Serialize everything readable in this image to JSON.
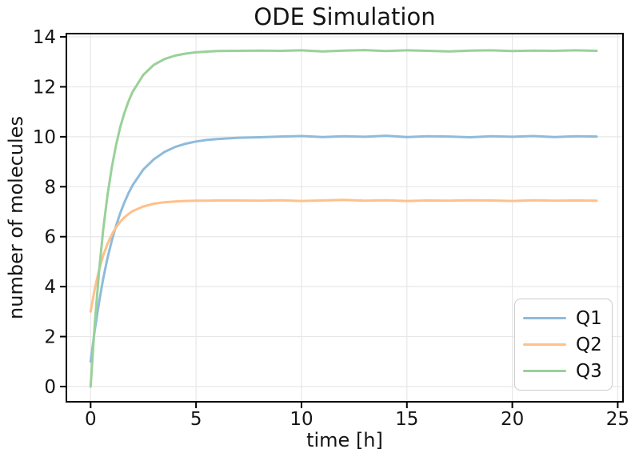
{
  "chart_data": {
    "type": "line",
    "title": "ODE Simulation",
    "xlabel": "time [h]",
    "ylabel": "number of molecules",
    "xlim": [
      -1.15,
      25.25
    ],
    "ylim": [
      -0.61,
      14.13
    ],
    "xticks": [
      0,
      5,
      10,
      15,
      20,
      25
    ],
    "yticks": [
      0,
      2,
      4,
      6,
      8,
      10,
      12,
      14
    ],
    "grid": true,
    "legend": {
      "position": "lower right"
    },
    "colors": {
      "grid": "#e7e7e7",
      "spine": "#000000",
      "tick_text": "#151515"
    },
    "x": [
      0,
      0.2,
      0.4,
      0.6,
      0.8,
      1,
      1.2,
      1.4,
      1.6,
      1.8,
      2,
      2.5,
      3,
      3.5,
      4,
      4.5,
      5,
      5.5,
      6,
      7,
      8,
      9,
      10,
      11,
      12,
      13,
      14,
      15,
      16,
      17,
      18,
      19,
      20,
      21,
      22,
      23,
      24
    ],
    "series": [
      {
        "name": "Q1",
        "color": "#8fbbdb",
        "values": [
          1,
          2.28,
          3.38,
          4.33,
          5.14,
          5.83,
          6.42,
          6.93,
          7.37,
          7.75,
          8.07,
          8.69,
          9.1,
          9.39,
          9.59,
          9.72,
          9.81,
          9.87,
          9.91,
          9.96,
          9.98,
          10.01,
          10.03,
          9.99,
          10.02,
          10,
          10.04,
          9.99,
          10.02,
          10.01,
          9.98,
          10.02,
          10,
          10.03,
          9.99,
          10.02,
          10.01
        ]
      },
      {
        "name": "Q2",
        "color": "#ffc08a",
        "values": [
          3,
          3.93,
          4.67,
          5.25,
          5.71,
          6.08,
          6.37,
          6.59,
          6.77,
          6.91,
          7.03,
          7.21,
          7.32,
          7.38,
          7.41,
          7.43,
          7.44,
          7.44,
          7.45,
          7.45,
          7.44,
          7.46,
          7.43,
          7.45,
          7.47,
          7.44,
          7.46,
          7.43,
          7.45,
          7.44,
          7.46,
          7.45,
          7.43,
          7.46,
          7.44,
          7.45,
          7.44
        ]
      },
      {
        "name": "Q3",
        "color": "#99d199",
        "values": [
          0,
          2.55,
          4.62,
          6.3,
          7.66,
          8.76,
          9.65,
          10.37,
          10.95,
          11.43,
          11.81,
          12.48,
          12.88,
          13.11,
          13.25,
          13.33,
          13.38,
          13.41,
          13.43,
          13.44,
          13.45,
          13.44,
          13.46,
          13.42,
          13.45,
          13.47,
          13.43,
          13.46,
          13.44,
          13.42,
          13.45,
          13.46,
          13.43,
          13.45,
          13.44,
          13.46,
          13.44
        ]
      }
    ]
  }
}
